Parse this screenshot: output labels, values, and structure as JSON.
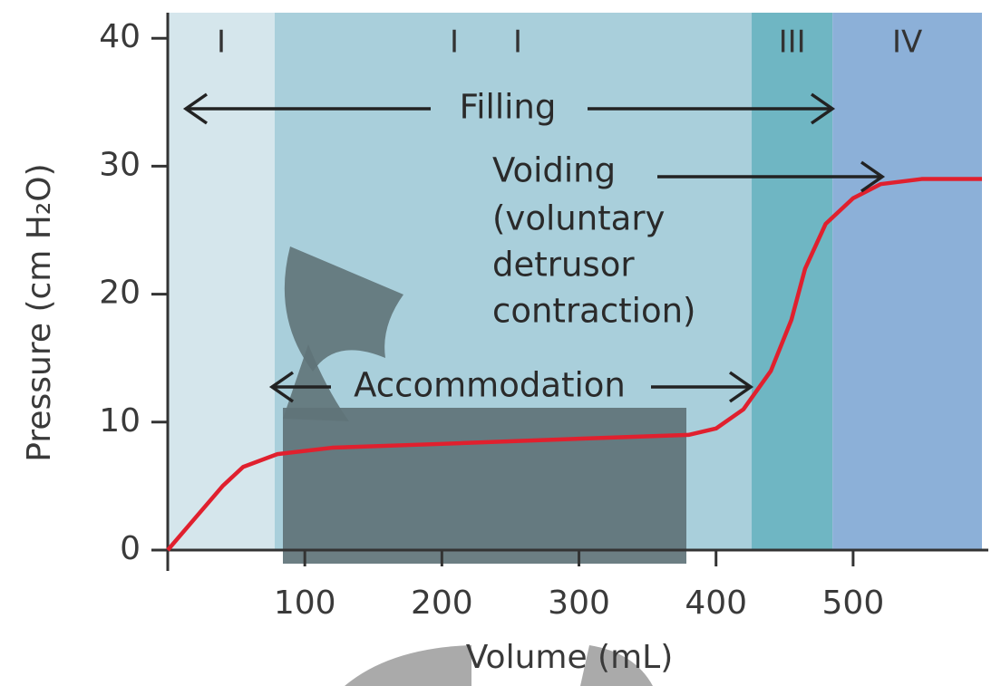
{
  "chart_data": {
    "type": "line",
    "xlabel": "Volume (mL)",
    "ylabel": "Pressure (cm H₂O)",
    "xlim": [
      0,
      594
    ],
    "ylim": [
      0,
      42
    ],
    "xticks": [
      100,
      200,
      300,
      400,
      500
    ],
    "yticks": [
      0,
      10,
      20,
      30,
      40
    ],
    "phases": [
      {
        "label": "I",
        "range": [
          0,
          78
        ],
        "color": "#d5e6ec"
      },
      {
        "label": "II",
        "range": [
          78,
          426
        ],
        "color": "#a9cfdb"
      },
      {
        "label": "III",
        "range": [
          426,
          485
        ],
        "color": "#6fb6c3"
      },
      {
        "label": "IV",
        "range": [
          485,
          594
        ],
        "color": "#8cb0d8"
      }
    ],
    "annotations": [
      "Filling",
      "Voiding",
      "(voluntary",
      "detrusor",
      "contraction)",
      "Accommodation"
    ],
    "series": [
      {
        "color": "#e0202e",
        "x": [
          0,
          20,
          40,
          55,
          80,
          120,
          200,
          300,
          380,
          400,
          420,
          440,
          455,
          465,
          480,
          500,
          520,
          550,
          594
        ],
        "values": [
          0,
          2.5,
          5,
          6.5,
          7.5,
          8,
          8.3,
          8.7,
          9,
          9.5,
          11,
          14,
          18,
          22,
          25.5,
          27.5,
          28.6,
          29,
          29
        ]
      }
    ]
  }
}
